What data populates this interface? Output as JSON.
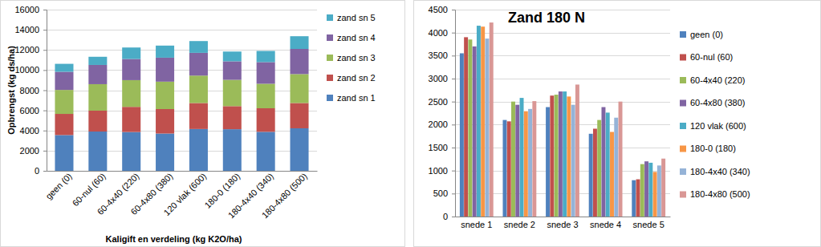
{
  "chart_data": [
    {
      "type": "bar",
      "stacked": true,
      "grid": true,
      "legend": "right",
      "y_label": "Opbrengst (kg ds/ha)",
      "x_label": "Kaligift en verdeling (kg K2O/ha)",
      "categories": [
        "geen (0)",
        "60-nul (60)",
        "60-4x40 (220)",
        "60-4x80 (380)",
        "120 vlak (600)",
        "180-0 (180)",
        "180-4x40 (340)",
        "180-4x80 (500)"
      ],
      "ylim": [
        0,
        16000
      ],
      "yticks": [
        0,
        2000,
        4000,
        6000,
        8000,
        10000,
        12000,
        14000,
        16000
      ],
      "series": [
        {
          "name": "zand sn 1",
          "color": "#4F81BD",
          "values": [
            3550,
            3900,
            3850,
            3700,
            4150,
            4130,
            3870,
            4220
          ]
        },
        {
          "name": "zand sn 2",
          "color": "#C0504D",
          "values": [
            2100,
            2070,
            2500,
            2430,
            2580,
            2290,
            2340,
            2510
          ]
        },
        {
          "name": "zand sn 3",
          "color": "#9BBB59",
          "values": [
            2380,
            2630,
            2650,
            2720,
            2720,
            2610,
            2430,
            2870
          ]
        },
        {
          "name": "zand sn 4",
          "color": "#8064A2",
          "values": [
            1800,
            1910,
            2100,
            2380,
            2260,
            1840,
            2150,
            2500
          ]
        },
        {
          "name": "zand sn 5",
          "color": "#4BACC6",
          "values": [
            790,
            810,
            1140,
            1200,
            1170,
            970,
            1110,
            1260
          ]
        }
      ]
    },
    {
      "type": "bar",
      "stacked": false,
      "grid": true,
      "legend": "right",
      "title": "Zand 180 N",
      "categories": [
        "snede 1",
        "snede 2",
        "snede 3",
        "snede 4",
        "snede 5"
      ],
      "ylim": [
        0,
        4500
      ],
      "yticks": [
        0,
        500,
        1000,
        1500,
        2000,
        2500,
        3000,
        3500,
        4000,
        4500
      ],
      "series": [
        {
          "name": "geen (0)",
          "color": "#4F81BD",
          "values": [
            3550,
            2100,
            2380,
            1800,
            790
          ]
        },
        {
          "name": "60-nul (60)",
          "color": "#C0504D",
          "values": [
            3900,
            2070,
            2630,
            1910,
            810
          ]
        },
        {
          "name": "60-4x40 (220)",
          "color": "#9BBB59",
          "values": [
            3850,
            2500,
            2650,
            2100,
            1140
          ]
        },
        {
          "name": "60-4x80 (380)",
          "color": "#8064A2",
          "values": [
            3700,
            2430,
            2720,
            2380,
            1200
          ]
        },
        {
          "name": "120 vlak (600)",
          "color": "#4BACC6",
          "values": [
            4150,
            2580,
            2720,
            2260,
            1170
          ]
        },
        {
          "name": "180-0 (180)",
          "color": "#F79646",
          "values": [
            4130,
            2290,
            2610,
            1840,
            970
          ]
        },
        {
          "name": "180-4x40 (340)",
          "color": "#95B3D7",
          "values": [
            3870,
            2340,
            2430,
            2150,
            1110
          ]
        },
        {
          "name": "180-4x80 (500)",
          "color": "#D99795",
          "values": [
            4220,
            2510,
            2870,
            2500,
            1260
          ]
        }
      ]
    }
  ]
}
